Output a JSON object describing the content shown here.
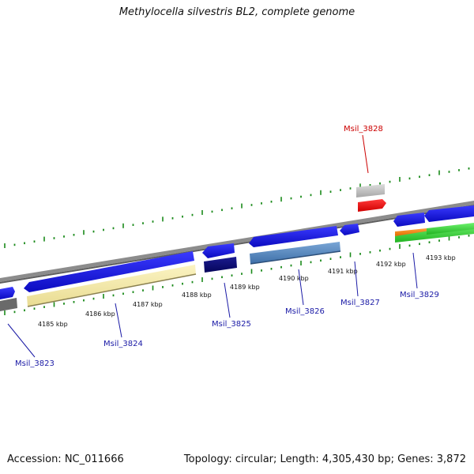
{
  "title": "Methylocella silvestris BL2, complete genome",
  "footer": {
    "accession": "Accession: NC_011666",
    "summary": "Topology: circular; Length: 4,305,430 bp; Genes: 3,872"
  },
  "colors": {
    "backbone": "#8c8c8c",
    "tick": "#1a8a1a",
    "forward_cds": "#1f1fd8",
    "label_blue": "#1a1aa6",
    "label_red": "#cc0000"
  },
  "scale_labels": [
    "4185 kbp",
    "4186 kbp",
    "4187 kbp",
    "4188 kbp",
    "4189 kbp",
    "4190 kbp",
    "4191 kbp",
    "4192 kbp",
    "4193 kbp"
  ],
  "gene_labels": [
    {
      "name": "Msil_3823",
      "color": "#1a1aa6"
    },
    {
      "name": "Msil_3824",
      "color": "#1a1aa6"
    },
    {
      "name": "Msil_3825",
      "color": "#1a1aa6"
    },
    {
      "name": "Msil_3826",
      "color": "#1a1aa6"
    },
    {
      "name": "Msil_3827",
      "color": "#1a1aa6"
    },
    {
      "name": "Msil_3828",
      "color": "#cc0000"
    },
    {
      "name": "Msil_3829",
      "color": "#1a1aa6"
    }
  ]
}
